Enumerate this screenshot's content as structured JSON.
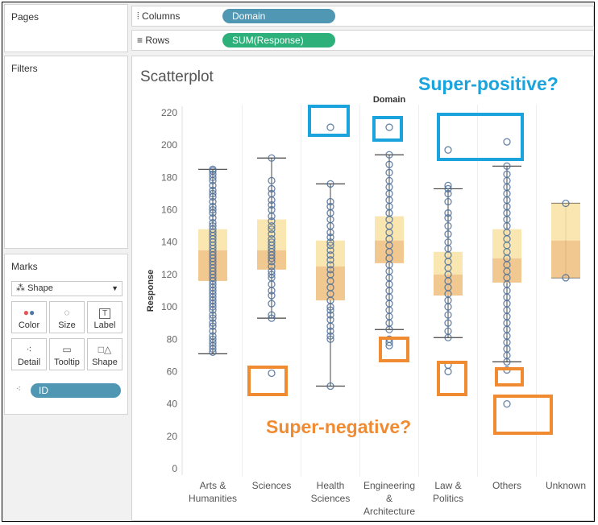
{
  "panels": {
    "pages_title": "Pages",
    "filters_title": "Filters",
    "marks_title": "Marks"
  },
  "shelves": {
    "columns_label": "Columns",
    "columns_pill": "Domain",
    "rows_label": "Rows",
    "rows_pill": "SUM(Response)"
  },
  "marks": {
    "type": "Shape",
    "buttons": [
      "Color",
      "Size",
      "Label",
      "Detail",
      "Tooltip",
      "Shape"
    ],
    "detail_pill": "ID"
  },
  "annotations": {
    "positive": "Super-positive?",
    "negative": "Super-negative?"
  },
  "colors": {
    "columns_pill": "#4f97b3",
    "rows_pill": "#2eb07a",
    "points": "#4e6f99",
    "box_upper": "#f9e3a7",
    "box_lower": "#f0c283",
    "positive_callout": "#1aa3dc",
    "negative_callout": "#f08b32"
  },
  "chart_data": {
    "type": "scatter",
    "title": "Scatterplot",
    "header": "Domain",
    "ylabel": "Response",
    "ylim": [
      0,
      220
    ],
    "yticks": [
      0,
      20,
      40,
      60,
      80,
      100,
      120,
      140,
      160,
      180,
      200,
      220
    ],
    "grid": false,
    "categories": [
      {
        "label": [
          "Arts &",
          "Humanities"
        ],
        "box": {
          "lower_whisker": 71,
          "q1": 116,
          "median": 135,
          "q3": 148,
          "upper_whisker": 185
        },
        "points": [
          72,
          74,
          76,
          78,
          80,
          82,
          85,
          88,
          90,
          93,
          95,
          98,
          100,
          102,
          104,
          106,
          108,
          110,
          112,
          114,
          116,
          118,
          120,
          122,
          124,
          126,
          128,
          130,
          132,
          134,
          136,
          138,
          140,
          142,
          144,
          146,
          148,
          150,
          152,
          155,
          158,
          160,
          162,
          165,
          168,
          170,
          172,
          175,
          178,
          180,
          182,
          184,
          185
        ]
      },
      {
        "label": [
          "Sciences"
        ],
        "box": {
          "lower_whisker": 93,
          "q1": 123,
          "median": 135,
          "q3": 154,
          "upper_whisker": 192
        },
        "points": [
          59,
          93,
          95,
          102,
          107,
          110,
          114,
          118,
          120,
          122,
          125,
          128,
          130,
          132,
          134,
          136,
          138,
          140,
          142,
          145,
          148,
          150,
          153,
          156,
          160,
          163,
          166,
          170,
          173,
          178,
          192
        ]
      },
      {
        "label": [
          "Health",
          "Sciences"
        ],
        "box": {
          "lower_whisker": 51,
          "q1": 104,
          "median": 125,
          "q3": 141,
          "upper_whisker": 176
        },
        "points": [
          51,
          80,
          82,
          85,
          88,
          92,
          95,
          98,
          100,
          104,
          108,
          112,
          116,
          120,
          123,
          126,
          129,
          132,
          135,
          138,
          140,
          143,
          146,
          150,
          154,
          158,
          162,
          165,
          176,
          211
        ]
      },
      {
        "label": [
          "Engineering",
          "&",
          "Architecture"
        ],
        "box": {
          "lower_whisker": 86,
          "q1": 127,
          "median": 141,
          "q3": 156,
          "upper_whisker": 194
        },
        "points": [
          76,
          78,
          80,
          86,
          90,
          94,
          98,
          102,
          106,
          110,
          114,
          118,
          122,
          126,
          130,
          134,
          138,
          142,
          146,
          150,
          154,
          158,
          162,
          166,
          170,
          174,
          178,
          183,
          188,
          194,
          211
        ]
      },
      {
        "label": [
          "Law &",
          "Politics"
        ],
        "box": {
          "lower_whisker": 81,
          "q1": 107,
          "median": 120,
          "q3": 134,
          "upper_whisker": 173
        },
        "points": [
          60,
          64,
          81,
          85,
          90,
          95,
          100,
          104,
          108,
          112,
          116,
          120,
          124,
          128,
          132,
          136,
          140,
          145,
          150,
          155,
          158,
          165,
          170,
          173,
          175,
          197
        ]
      },
      {
        "label": [
          "Others"
        ],
        "box": {
          "lower_whisker": 66,
          "q1": 115,
          "median": 130,
          "q3": 148,
          "upper_whisker": 187
        },
        "points": [
          40,
          61,
          66,
          70,
          74,
          78,
          82,
          86,
          90,
          94,
          98,
          102,
          106,
          110,
          114,
          118,
          122,
          126,
          130,
          134,
          138,
          142,
          146,
          150,
          154,
          158,
          162,
          166,
          170,
          174,
          178,
          182,
          187,
          202
        ]
      },
      {
        "label": [
          "Unknown"
        ],
        "box": {
          "lower_whisker": 118,
          "q1": 118,
          "median": 141,
          "q3": 164,
          "upper_whisker": 164
        },
        "points": [
          118,
          164
        ]
      }
    ]
  }
}
